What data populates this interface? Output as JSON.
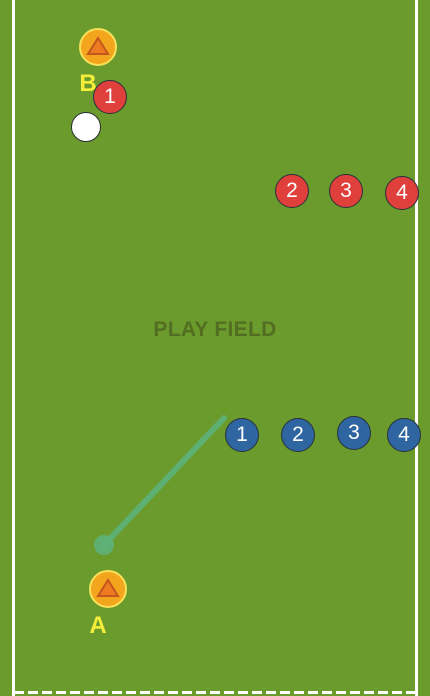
{
  "field": {
    "watermark": "PLAY FIELD",
    "grass_color": "#6a9b2c",
    "line_color": "#ffffff"
  },
  "cones": [
    {
      "label": "B",
      "color": "#f4a51e"
    },
    {
      "label": "A",
      "color": "#f4a51e"
    }
  ],
  "red_team": {
    "color": "#e0403c",
    "players": [
      "1",
      "2",
      "3",
      "4"
    ]
  },
  "blue_team": {
    "color": "#2f65a0",
    "players": [
      "1",
      "2",
      "3",
      "4"
    ]
  },
  "ball": {
    "color": "#ffffff"
  },
  "pass_line": {
    "color": "#5cb37a"
  }
}
